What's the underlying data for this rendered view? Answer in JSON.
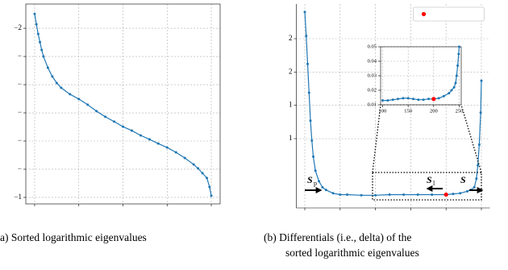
{
  "chart_data": [
    {
      "type": "line",
      "caption": "a) Sorted logarithmic eigenvalues",
      "xlim": [
        -10,
        210
      ],
      "xticks": [
        0,
        50,
        100,
        150,
        200
      ],
      "ylim": [
        -0.23,
        6.86
      ],
      "yticks": [
        {
          "value": 6,
          "label": "−2"
        },
        {
          "value": 5,
          "label": "−"
        },
        {
          "value": 4,
          "label": "−"
        },
        {
          "value": 3,
          "label": "−"
        },
        {
          "value": 2,
          "label": "−"
        },
        {
          "value": 1,
          "label": "−"
        },
        {
          "value": 0,
          "label": "−1"
        }
      ],
      "grid": true,
      "series": [
        {
          "color": "#1f77b4",
          "x": [
            0,
            2,
            4,
            6,
            8,
            10,
            15,
            20,
            25,
            30,
            40,
            50,
            60,
            70,
            80,
            90,
            100,
            110,
            120,
            130,
            140,
            150,
            160,
            170,
            180,
            185,
            190,
            195,
            198,
            200
          ],
          "values": [
            6.51,
            6.14,
            5.8,
            5.51,
            5.23,
            5.0,
            4.6,
            4.29,
            4.06,
            3.89,
            3.66,
            3.49,
            3.29,
            3.06,
            2.86,
            2.69,
            2.51,
            2.37,
            2.2,
            2.06,
            1.91,
            1.77,
            1.6,
            1.4,
            1.17,
            1.03,
            0.86,
            0.69,
            0.37,
            0.06
          ]
        }
      ]
    },
    {
      "type": "line",
      "caption": [
        "(b) Differentials (i.e., delta) of the",
        "sorted logarithmic eigenvalues"
      ],
      "xlim": [
        -12,
        262
      ],
      "xticks": [
        0,
        50,
        100,
        150,
        200,
        250
      ],
      "ylim": [
        -0.04,
        3.02
      ],
      "yticks": [
        {
          "value": 2.5,
          "label": "2"
        },
        {
          "value": 2.0,
          "label": "2"
        },
        {
          "value": 1.5,
          "label": "1"
        },
        {
          "value": 1.0,
          "label": "1"
        }
      ],
      "grid": true,
      "legend": "upper right",
      "annotations": [
        {
          "text": "S",
          "sub": "p"
        },
        {
          "text": "S",
          "sub": "l"
        },
        {
          "text": "S"
        }
      ],
      "series": [
        {
          "color": "#1f77b4",
          "x": [
            0,
            2,
            4,
            6,
            8,
            10,
            12,
            15,
            20,
            25,
            30,
            40,
            50,
            60,
            80,
            100,
            120,
            140,
            160,
            180,
            200,
            210,
            220,
            230,
            235,
            240,
            243,
            245,
            247,
            249,
            250
          ],
          "values": [
            2.9,
            2.54,
            2.12,
            1.69,
            1.27,
            0.97,
            0.73,
            0.52,
            0.36,
            0.27,
            0.23,
            0.18,
            0.16,
            0.16,
            0.15,
            0.15,
            0.16,
            0.16,
            0.16,
            0.16,
            0.16,
            0.17,
            0.18,
            0.21,
            0.23,
            0.27,
            0.4,
            0.6,
            0.91,
            1.39,
            1.87
          ]
        },
        {
          "color": "#ff0000",
          "marker_only": true,
          "x": [
            200
          ],
          "values": [
            0.16
          ]
        }
      ]
    },
    {
      "type": "line",
      "xlim": [
        96,
        254
      ],
      "xticks": [
        100,
        150,
        200,
        250
      ],
      "ylim": [
        0.01,
        0.05
      ],
      "yticks": [
        0.01,
        0.02,
        0.03,
        0.04,
        0.05
      ],
      "grid": true,
      "series": [
        {
          "color": "#1f77b4",
          "x": [
            100,
            110,
            120,
            130,
            140,
            150,
            160,
            170,
            180,
            190,
            200,
            210,
            220,
            230,
            235,
            240,
            243,
            245,
            247,
            249,
            250
          ],
          "values": [
            0.013,
            0.013,
            0.0135,
            0.014,
            0.0145,
            0.0145,
            0.014,
            0.0135,
            0.0135,
            0.014,
            0.014,
            0.0145,
            0.016,
            0.018,
            0.02,
            0.022,
            0.025,
            0.03,
            0.037,
            0.045,
            0.05
          ]
        },
        {
          "color": "#ff0000",
          "marker_only": true,
          "x": [
            200
          ],
          "values": [
            0.014
          ]
        }
      ]
    }
  ]
}
